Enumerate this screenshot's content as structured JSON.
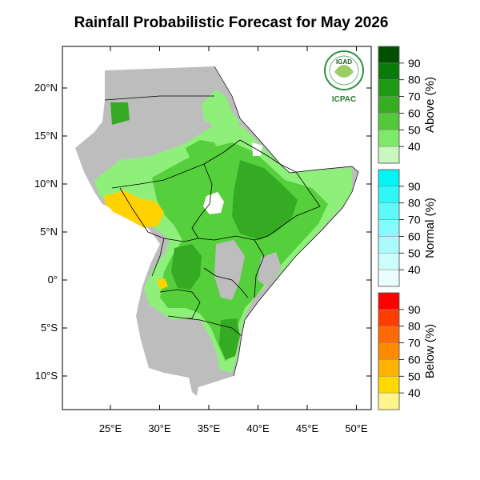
{
  "title": "Rainfall Probabilistic Forecast for May 2026",
  "logo": {
    "top_text": "IGAD",
    "bottom_text": "ICPAC"
  },
  "axes": {
    "lat_ticks": [
      {
        "value": 20,
        "label": "20°N"
      },
      {
        "value": 15,
        "label": "15°N"
      },
      {
        "value": 10,
        "label": "10°N"
      },
      {
        "value": 5,
        "label": "5°N"
      },
      {
        "value": 0,
        "label": "0°"
      },
      {
        "value": -5,
        "label": "5°S"
      },
      {
        "value": -10,
        "label": "10°S"
      }
    ],
    "lon_ticks": [
      {
        "value": 25,
        "label": "25°E"
      },
      {
        "value": 30,
        "label": "30°E"
      },
      {
        "value": 35,
        "label": "35°E"
      },
      {
        "value": 40,
        "label": "40°E"
      },
      {
        "value": 45,
        "label": "45°E"
      },
      {
        "value": 50,
        "label": "50°E"
      }
    ]
  },
  "colorbars": [
    {
      "name": "above",
      "title": "Above (%)",
      "labels": [
        "90",
        "80",
        "70",
        "60",
        "50",
        "40"
      ],
      "colors": [
        "#005000",
        "#0a7a0a",
        "#1f9a14",
        "#37ad22",
        "#52c83a",
        "#7ee86a",
        "#c8f7c0"
      ]
    },
    {
      "name": "normal",
      "title": "Normal (%)",
      "labels": [
        "90",
        "80",
        "70",
        "60",
        "50",
        "40"
      ],
      "colors": [
        "#00f5f5",
        "#2ff7f7",
        "#5ff9f9",
        "#86fbfb",
        "#a8fcfc",
        "#cbfdfd",
        "#eafefe"
      ]
    },
    {
      "name": "below",
      "title": "Below (%)",
      "labels": [
        "90",
        "80",
        "70",
        "60",
        "50",
        "40"
      ],
      "colors": [
        "#ff0000",
        "#ff3d00",
        "#ff6a00",
        "#ff8c00",
        "#ffb300",
        "#ffd900",
        "#fff58c"
      ]
    }
  ],
  "map_colors": {
    "no_data": "#bdbdbd",
    "above_40": "#8ef07a",
    "above_50": "#55cf3c",
    "above_60": "#35ab24",
    "below_40": "#ffd200"
  }
}
